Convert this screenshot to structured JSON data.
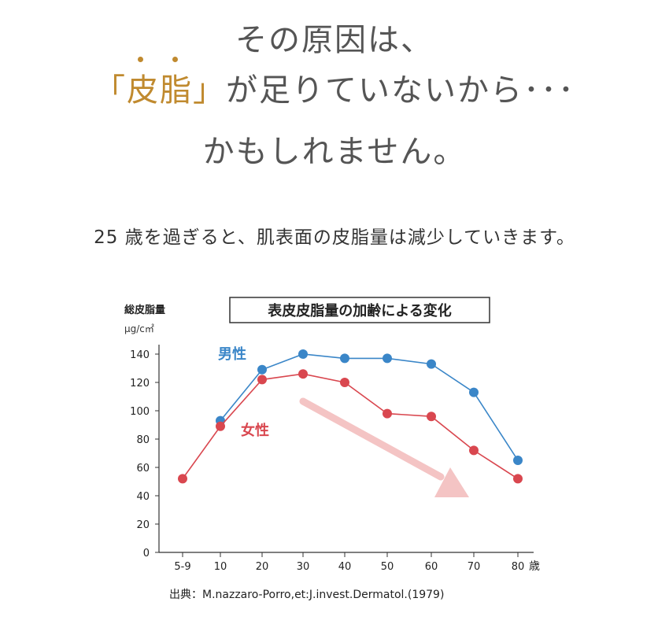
{
  "headline": {
    "line1": "その原因は、",
    "line2_open": "「",
    "line2_accent": "皮脂",
    "line2_close": "」",
    "line2_rest": "が足りていないから･･･",
    "line3": "かもしれません。"
  },
  "intro": "25 歳を過ぎると、肌表面の皮脂量は減少していきます。",
  "source": "出典：M.nazzaro-Porro,et:J.invest.Dermatol.(1979)",
  "colors": {
    "male": "#3a86c8",
    "female": "#d9474f",
    "accent": "#c08a2f",
    "arrow": "#f4c4c4"
  },
  "chart_data": {
    "type": "line",
    "title": "表皮皮脂量の加齢による変化",
    "ylabel": "総皮脂量",
    "yunit": "μg/c㎡",
    "x_unit": "歳",
    "categories": [
      "5-9",
      "10",
      "20",
      "30",
      "40",
      "50",
      "60",
      "70",
      "80"
    ],
    "ylim": [
      0,
      140
    ],
    "yticks": [
      0,
      20,
      40,
      60,
      80,
      100,
      120,
      140
    ],
    "series": [
      {
        "name": "男性",
        "values": [
          null,
          93,
          129,
          140,
          137,
          137,
          133,
          113,
          65
        ]
      },
      {
        "name": "女性",
        "values": [
          52,
          89,
          122,
          126,
          120,
          98,
          96,
          72,
          52
        ]
      }
    ]
  }
}
